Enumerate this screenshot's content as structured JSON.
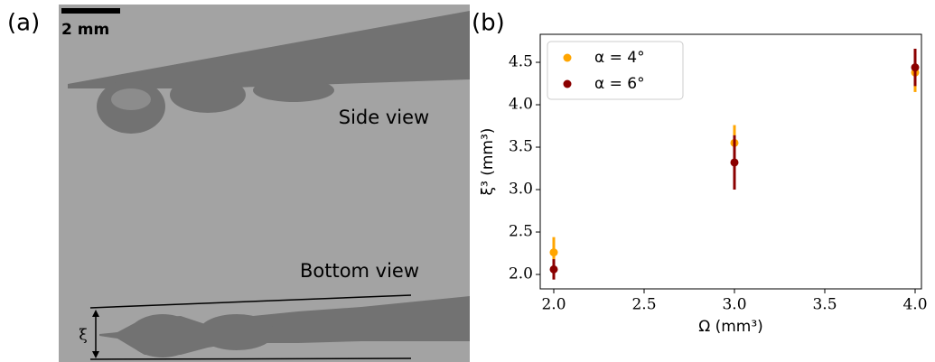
{
  "panel_a": {
    "label": "(a)",
    "scale_bar": "2 mm",
    "side_label": "Side view",
    "bottom_label": "Bottom view",
    "width_symbol": "ξ"
  },
  "chart_data": {
    "type": "scatter",
    "panel_label": "(b)",
    "xlabel": "Ω (mm³)",
    "ylabel": "ξ³ (mm³)",
    "xlim": [
      1.925,
      4.035
    ],
    "ylim": [
      1.83,
      4.83
    ],
    "xticks": [
      {
        "value": 2,
        "label": "2.0"
      },
      2.5,
      {
        "value": 3,
        "label": "3.0"
      },
      3.5,
      {
        "value": 4,
        "label": "4.0"
      }
    ],
    "yticks": [
      {
        "value": 2,
        "label": "2.0"
      },
      2.5,
      {
        "value": 3,
        "label": "3.0"
      },
      3.5,
      {
        "value": 4,
        "label": "4.0"
      },
      4.5
    ],
    "legend": "upper left",
    "series": [
      {
        "name": "α = 4°",
        "color": "#ffa500",
        "x": [
          2,
          3,
          4
        ],
        "values": [
          2.26,
          3.55,
          4.38
        ],
        "errors": [
          0.18,
          0.21,
          0.23
        ]
      },
      {
        "name": "α = 6°",
        "color": "#8b0000",
        "x": [
          2,
          3,
          4
        ],
        "values": [
          2.06,
          3.32,
          4.44
        ],
        "errors": [
          0.12,
          0.32,
          0.22
        ]
      }
    ]
  }
}
